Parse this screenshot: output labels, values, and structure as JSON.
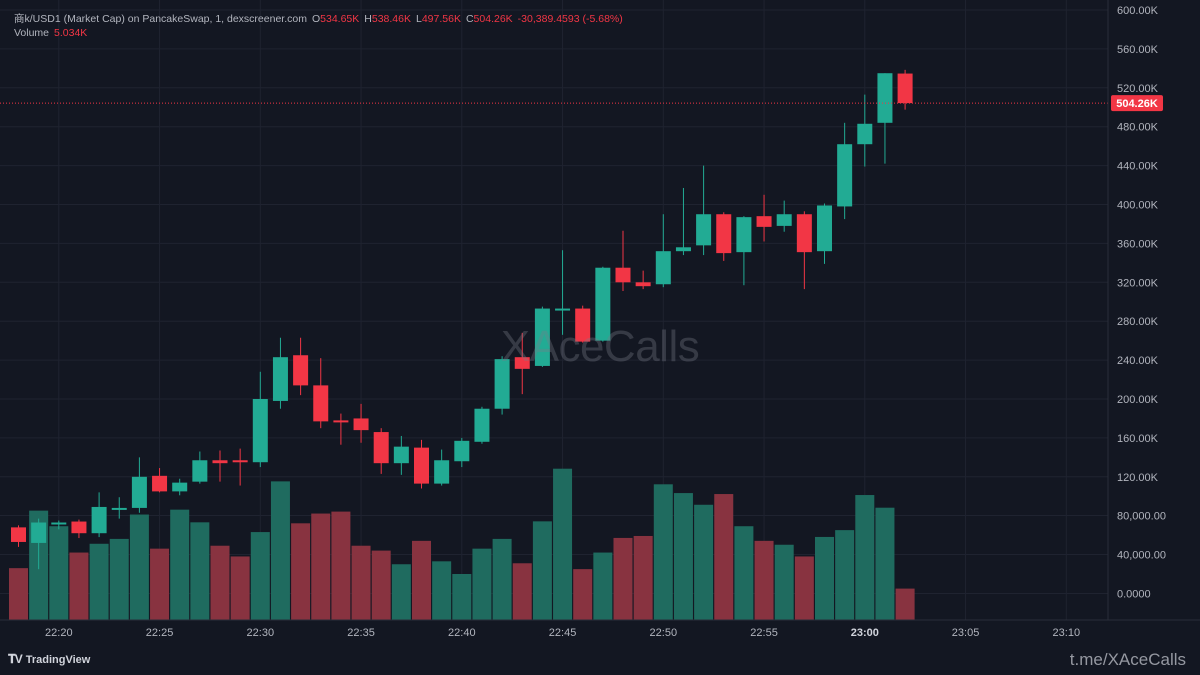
{
  "legend": {
    "symbol": "商k/USD1 (Market Cap) on PancakeSwap, 1, dexscreener.com",
    "o_label": "O",
    "o_value": "534.65K",
    "h_label": "H",
    "h_value": "538.46K",
    "l_label": "L",
    "l_value": "497.56K",
    "c_label": "C",
    "c_value": "504.26K",
    "change": "-30,389.4593 (-5.68%)",
    "volume_label": "Volume",
    "volume_value": "5.034K"
  },
  "watermark": "XAceCalls",
  "branding": {
    "logo_text": "TradingView",
    "logo_icon": "tradingview-logo-icon",
    "link": "t.me/XAceCalls"
  },
  "colors": {
    "up": "#22ab94",
    "down": "#f23645",
    "up_volume": "#1f6b5f",
    "down_volume": "#883340",
    "background": "#131722",
    "grid": "#1f2330"
  },
  "chart_data": {
    "type": "candlestick",
    "price_axis": {
      "ylim": [
        0,
        600000
      ],
      "ticks": [
        {
          "value": 600000,
          "label": "600.00K"
        },
        {
          "value": 560000,
          "label": "560.00K"
        },
        {
          "value": 520000,
          "label": "520.00K"
        },
        {
          "value": 480000,
          "label": "480.00K"
        },
        {
          "value": 440000,
          "label": "440.00K"
        },
        {
          "value": 400000,
          "label": "400.00K"
        },
        {
          "value": 360000,
          "label": "360.00K"
        },
        {
          "value": 320000,
          "label": "320.00K"
        },
        {
          "value": 280000,
          "label": "280.00K"
        },
        {
          "value": 240000,
          "label": "240.00K"
        },
        {
          "value": 200000,
          "label": "200.00K"
        },
        {
          "value": 160000,
          "label": "160.00K"
        },
        {
          "value": 120000,
          "label": "120.00K"
        }
      ]
    },
    "volume_axis": {
      "ticks": [
        {
          "value": 80000,
          "label": "80,000.00"
        },
        {
          "value": 40000,
          "label": "40,000.00"
        },
        {
          "value": 0,
          "label": "0.0000"
        }
      ]
    },
    "time_axis": {
      "ticks": [
        {
          "index": 2,
          "label": "22:20",
          "bold": false
        },
        {
          "index": 7,
          "label": "22:25",
          "bold": false
        },
        {
          "index": 12,
          "label": "22:30",
          "bold": false
        },
        {
          "index": 17,
          "label": "22:35",
          "bold": false
        },
        {
          "index": 22,
          "label": "22:40",
          "bold": false
        },
        {
          "index": 27,
          "label": "22:45",
          "bold": false
        },
        {
          "index": 32,
          "label": "22:50",
          "bold": false
        },
        {
          "index": 37,
          "label": "22:55",
          "bold": false
        },
        {
          "index": 42,
          "label": "23:00",
          "bold": true
        },
        {
          "index": 47,
          "label": "23:05",
          "bold": false
        },
        {
          "index": 52,
          "label": "23:10",
          "bold": false
        }
      ]
    },
    "last_price": {
      "value": 504260,
      "label": "504.26K"
    },
    "candles": [
      {
        "o": 68000,
        "h": 70000,
        "l": 48000,
        "c": 53000,
        "v": 26000
      },
      {
        "o": 52000,
        "h": 77000,
        "l": 25000,
        "c": 73000,
        "v": 85000
      },
      {
        "o": 71000,
        "h": 75000,
        "l": 66000,
        "c": 73000,
        "v": 69000
      },
      {
        "o": 74000,
        "h": 76000,
        "l": 57000,
        "c": 62000,
        "v": 42000
      },
      {
        "o": 62000,
        "h": 104000,
        "l": 58000,
        "c": 89000,
        "v": 51000
      },
      {
        "o": 88000,
        "h": 99000,
        "l": 77000,
        "c": 88000,
        "v": 56000
      },
      {
        "o": 88000,
        "h": 140000,
        "l": 83000,
        "c": 120000,
        "v": 81000
      },
      {
        "o": 121000,
        "h": 129000,
        "l": 104000,
        "c": 105000,
        "v": 46000
      },
      {
        "o": 105000,
        "h": 118000,
        "l": 101000,
        "c": 114000,
        "v": 86000
      },
      {
        "o": 115000,
        "h": 146000,
        "l": 113000,
        "c": 137000,
        "v": 73000
      },
      {
        "o": 137000,
        "h": 147000,
        "l": 115000,
        "c": 134000,
        "v": 49000
      },
      {
        "o": 137000,
        "h": 149000,
        "l": 111000,
        "c": 135000,
        "v": 38000
      },
      {
        "o": 135000,
        "h": 228000,
        "l": 130000,
        "c": 200000,
        "v": 63000
      },
      {
        "o": 198000,
        "h": 263000,
        "l": 190000,
        "c": 243000,
        "v": 115000
      },
      {
        "o": 245000,
        "h": 263000,
        "l": 204000,
        "c": 214000,
        "v": 72000
      },
      {
        "o": 214000,
        "h": 242000,
        "l": 170000,
        "c": 177000,
        "v": 82000
      },
      {
        "o": 178000,
        "h": 185000,
        "l": 153000,
        "c": 177000,
        "v": 84000
      },
      {
        "o": 180000,
        "h": 195000,
        "l": 155000,
        "c": 168000,
        "v": 49000
      },
      {
        "o": 166000,
        "h": 170000,
        "l": 123000,
        "c": 134000,
        "v": 44000
      },
      {
        "o": 134000,
        "h": 162000,
        "l": 122000,
        "c": 151000,
        "v": 30000
      },
      {
        "o": 150000,
        "h": 158000,
        "l": 108000,
        "c": 113000,
        "v": 54000
      },
      {
        "o": 113000,
        "h": 148000,
        "l": 111000,
        "c": 137000,
        "v": 33000
      },
      {
        "o": 136000,
        "h": 160000,
        "l": 130000,
        "c": 157000,
        "v": 20000
      },
      {
        "o": 156000,
        "h": 192000,
        "l": 154000,
        "c": 190000,
        "v": 46000
      },
      {
        "o": 190000,
        "h": 244000,
        "l": 184000,
        "c": 241000,
        "v": 56000
      },
      {
        "o": 243000,
        "h": 268000,
        "l": 205000,
        "c": 231000,
        "v": 31000
      },
      {
        "o": 234000,
        "h": 295000,
        "l": 233000,
        "c": 293000,
        "v": 74000
      },
      {
        "o": 293000,
        "h": 353000,
        "l": 266000,
        "c": 293000,
        "v": 128000
      },
      {
        "o": 293000,
        "h": 296000,
        "l": 258000,
        "c": 259000,
        "v": 25000
      },
      {
        "o": 260000,
        "h": 336000,
        "l": 259000,
        "c": 335000,
        "v": 42000
      },
      {
        "o": 335000,
        "h": 373000,
        "l": 311000,
        "c": 320000,
        "v": 57000
      },
      {
        "o": 320000,
        "h": 332000,
        "l": 313000,
        "c": 316000,
        "v": 59000
      },
      {
        "o": 318000,
        "h": 390000,
        "l": 315000,
        "c": 352000,
        "v": 112000
      },
      {
        "o": 352000,
        "h": 417000,
        "l": 348000,
        "c": 356000,
        "v": 103000
      },
      {
        "o": 358000,
        "h": 440000,
        "l": 348000,
        "c": 390000,
        "v": 91000
      },
      {
        "o": 390000,
        "h": 392000,
        "l": 342000,
        "c": 350000,
        "v": 102000
      },
      {
        "o": 351000,
        "h": 388000,
        "l": 317000,
        "c": 387000,
        "v": 69000
      },
      {
        "o": 388000,
        "h": 410000,
        "l": 362000,
        "c": 377000,
        "v": 54000
      },
      {
        "o": 378000,
        "h": 404000,
        "l": 372000,
        "c": 390000,
        "v": 50000
      },
      {
        "o": 390000,
        "h": 393000,
        "l": 313000,
        "c": 351000,
        "v": 38000
      },
      {
        "o": 352000,
        "h": 401000,
        "l": 339000,
        "c": 399000,
        "v": 58000
      },
      {
        "o": 398000,
        "h": 484000,
        "l": 385000,
        "c": 462000,
        "v": 65000
      },
      {
        "o": 462000,
        "h": 513000,
        "l": 439000,
        "c": 483000,
        "v": 101000
      },
      {
        "o": 484000,
        "h": 535000,
        "l": 442000,
        "c": 535000,
        "v": 88000
      },
      {
        "o": 534650,
        "h": 538460,
        "l": 497560,
        "c": 504260,
        "v": 5034
      }
    ]
  }
}
